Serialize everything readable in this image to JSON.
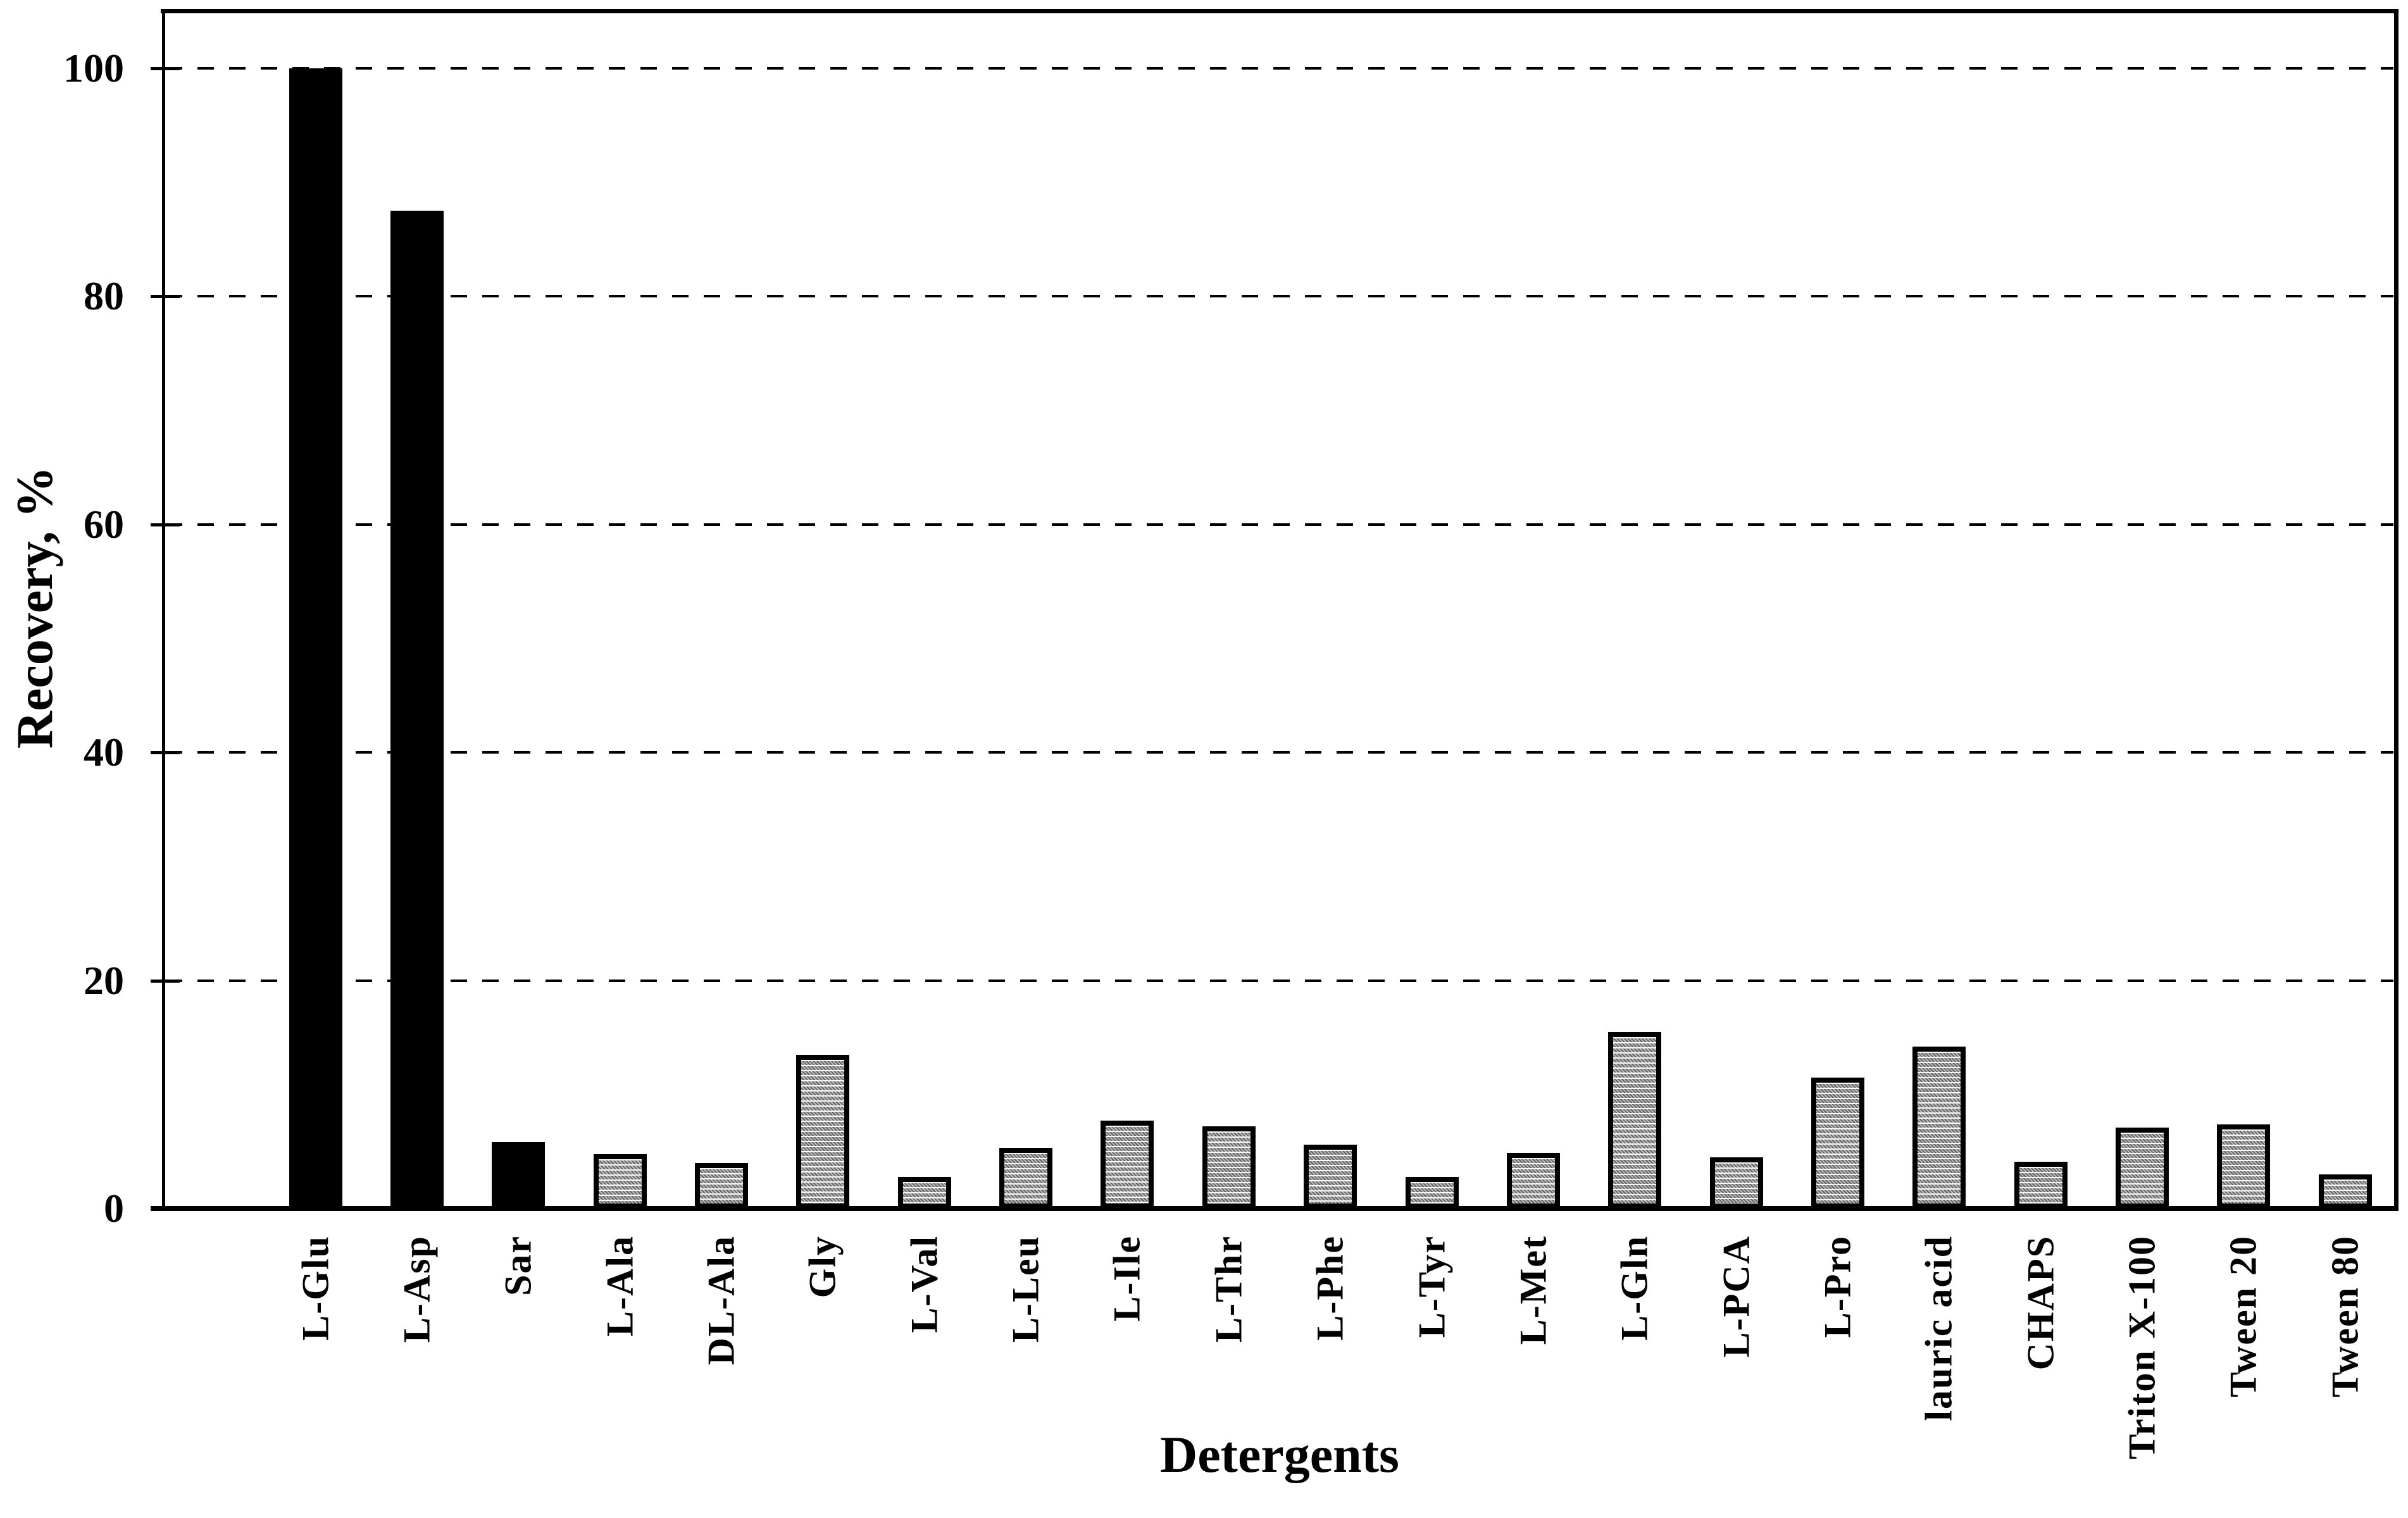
{
  "chart_data": {
    "type": "bar",
    "title": "",
    "xlabel": "Detergents",
    "ylabel": "Recovery, %",
    "categories": [
      "L-Glu",
      "L-Asp",
      "Sar",
      "L-Ala",
      "DL-Ala",
      "Gly",
      "L-Val",
      "L-Leu",
      "L-Ile",
      "L-Thr",
      "L-Phe",
      "L-Tyr",
      "L-Met",
      "L-Gln",
      "L-PCA",
      "L-Pro",
      "lauric acid",
      "CHAPS",
      "Triton X-100",
      "Tween 20",
      "Tween 80"
    ],
    "values": [
      100,
      87.5,
      5.8,
      4.8,
      4.0,
      13.5,
      2.8,
      5.3,
      7.7,
      7.2,
      5.6,
      2.8,
      4.9,
      15.5,
      4.5,
      11.5,
      14.2,
      4.1,
      7.1,
      7.4,
      3.0
    ],
    "bar_styles": [
      "solid",
      "solid",
      "solid",
      "hatched",
      "hatched",
      "hatched",
      "hatched",
      "hatched",
      "hatched",
      "hatched",
      "hatched",
      "hatched",
      "hatched",
      "hatched",
      "hatched",
      "hatched",
      "hatched",
      "hatched",
      "hatched",
      "hatched",
      "hatched"
    ],
    "yticks": [
      0,
      20,
      40,
      60,
      80,
      100
    ],
    "ytick_labels": [
      "0",
      "20",
      "40",
      "60",
      "80",
      "100"
    ],
    "gridline_ticks": [
      20,
      40,
      60,
      80,
      100
    ],
    "ylim": [
      0,
      105
    ],
    "grid": "horizontal dashed",
    "legend": "none",
    "colors": {
      "bar_solid": "#000000",
      "bar_hatch_gray": "#9a9a9a",
      "axis": "#000000",
      "background": "#ffffff"
    }
  }
}
